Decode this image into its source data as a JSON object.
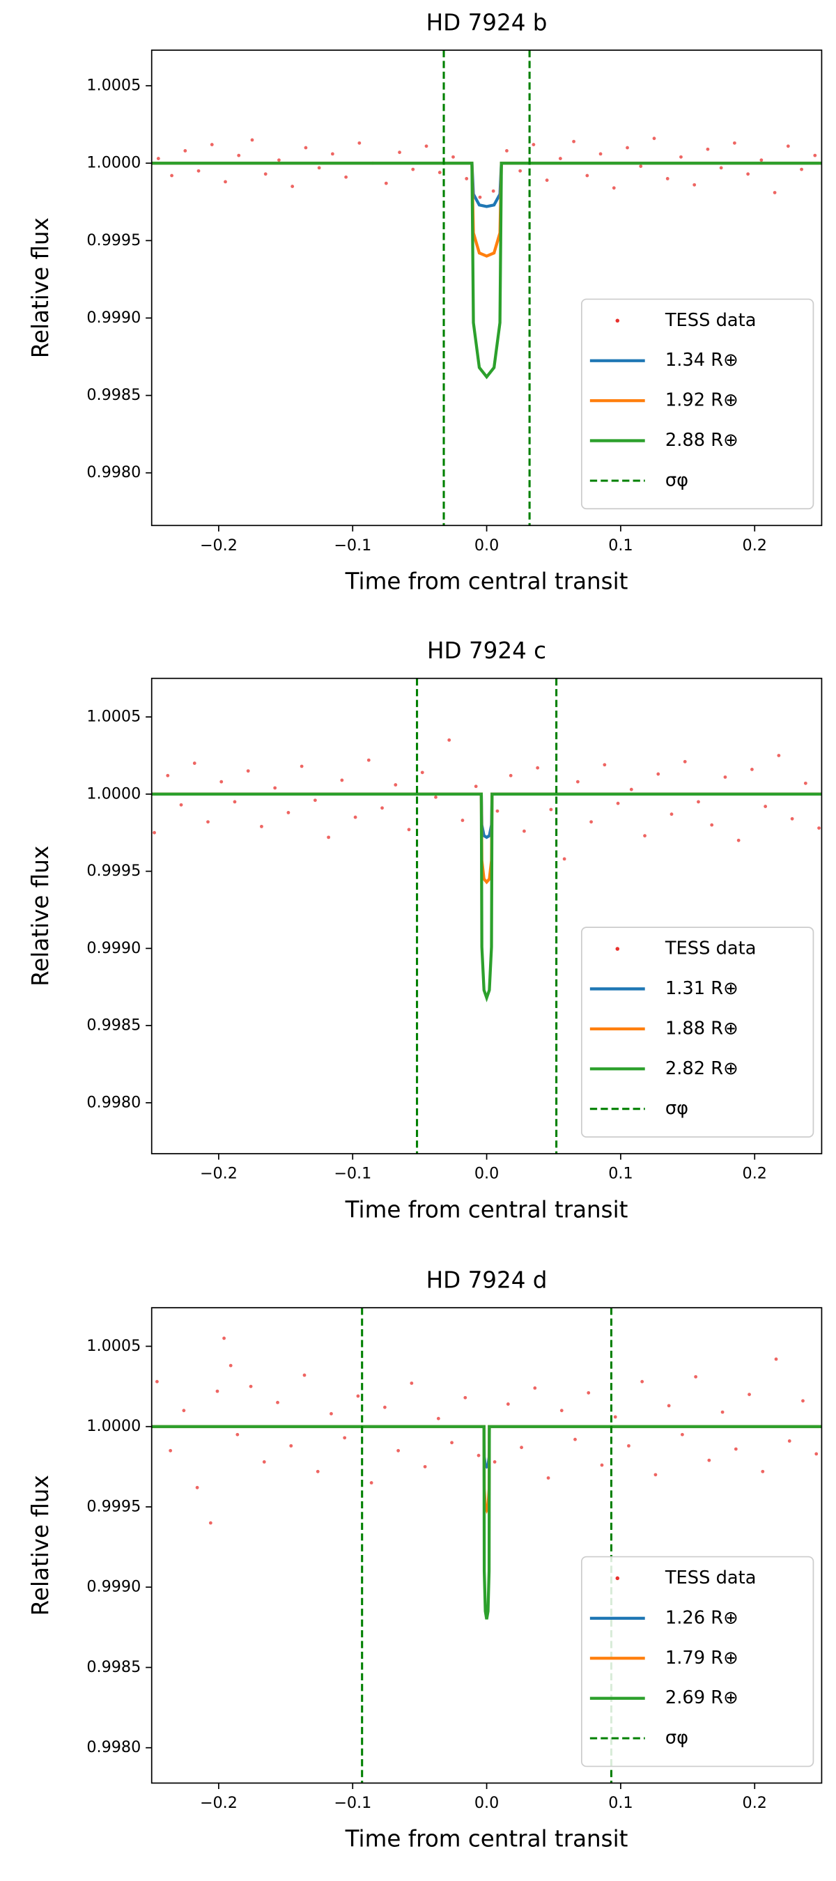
{
  "chart_data": [
    {
      "type": "scatter",
      "title": "HD 7924 b",
      "xlabel": "Time from central transit",
      "ylabel": "Relative flux",
      "xlim": [
        -0.25,
        0.25
      ],
      "ylim": [
        0.99766,
        1.00073
      ],
      "xticks": [
        {
          "value": -0.2,
          "label": "−0.2"
        },
        {
          "value": -0.1,
          "label": "−0.1"
        },
        {
          "value": 0,
          "label": "0.0"
        },
        0.1,
        0.2
      ],
      "yticks": [
        {
          "value": 0.998,
          "label": "0.9980"
        },
        0.9985,
        {
          "value": 0.999,
          "label": "0.9990"
        },
        0.9995,
        {
          "value": 1,
          "label": "1.0000"
        },
        1.0005
      ],
      "legend": "lower right",
      "series": [
        {
          "name": "TESS data",
          "type": "scatter",
          "color": "#e8312d",
          "x": [
            -0.245,
            -0.235,
            -0.225,
            -0.215,
            -0.205,
            -0.195,
            -0.185,
            -0.175,
            -0.165,
            -0.155,
            -0.145,
            -0.135,
            -0.125,
            -0.115,
            -0.105,
            -0.095,
            -0.085,
            -0.075,
            -0.065,
            -0.055,
            -0.045,
            -0.035,
            -0.025,
            -0.015,
            -0.005,
            0.005,
            0.015,
            0.025,
            0.035,
            0.045,
            0.055,
            0.065,
            0.075,
            0.085,
            0.095,
            0.105,
            0.115,
            0.125,
            0.135,
            0.145,
            0.155,
            0.165,
            0.175,
            0.185,
            0.195,
            0.205,
            0.215,
            0.225,
            0.235,
            0.245
          ],
          "values": [
            1.00003,
            0.99992,
            1.00008,
            0.99995,
            1.00012,
            0.99988,
            1.00005,
            1.00015,
            0.99993,
            1.00002,
            0.99985,
            1.0001,
            0.99997,
            1.00006,
            0.99991,
            1.00013,
            1.0,
            0.99987,
            1.00007,
            0.99996,
            1.00011,
            0.99994,
            1.00004,
            0.9999,
            0.99978,
            0.99982,
            1.00008,
            0.99995,
            1.00012,
            0.99989,
            1.00003,
            1.00014,
            0.99992,
            1.00006,
            0.99984,
            1.0001,
            0.99998,
            1.00016,
            0.9999,
            1.00004,
            0.99986,
            1.00009,
            0.99997,
            1.00013,
            0.99993,
            1.00002,
            0.99981,
            1.00011,
            0.99996,
            1.00005
          ]
        },
        {
          "name": "1.34 R⊕",
          "type": "line",
          "color": "#1f77b4",
          "x": [
            -0.25,
            -0.011,
            -0.0099,
            -0.0055,
            0,
            0.0055,
            0.0099,
            0.011,
            0.25
          ],
          "values": [
            1,
            1,
            0.9998,
            0.99973,
            0.99972,
            0.99973,
            0.9998,
            1,
            1
          ]
        },
        {
          "name": "1.92 R⊕",
          "type": "line",
          "color": "#ff7f0e",
          "x": [
            -0.25,
            -0.011,
            -0.0099,
            -0.0055,
            0,
            0.0055,
            0.0099,
            0.011,
            0.25
          ],
          "values": [
            1,
            1,
            0.99955,
            0.99942,
            0.9994,
            0.99942,
            0.99955,
            1,
            1
          ]
        },
        {
          "name": "2.88 R⊕",
          "type": "line",
          "color": "#2ca02c",
          "x": [
            -0.25,
            -0.011,
            -0.0099,
            -0.0055,
            0,
            0.0055,
            0.0099,
            0.011,
            0.25
          ],
          "values": [
            1,
            1,
            0.99897,
            0.99868,
            0.99862,
            0.99868,
            0.99897,
            1,
            1
          ]
        },
        {
          "name": "σφ",
          "type": "vline",
          "color": "#008000",
          "x": [
            -0.032,
            0.032
          ]
        }
      ]
    },
    {
      "type": "scatter",
      "title": "HD 7924 c",
      "xlabel": "Time from central transit",
      "ylabel": "Relative flux",
      "xlim": [
        -0.25,
        0.25
      ],
      "ylim": [
        0.99767,
        1.00075
      ],
      "xticks": [
        {
          "value": -0.2,
          "label": "−0.2"
        },
        {
          "value": -0.1,
          "label": "−0.1"
        },
        {
          "value": 0,
          "label": "0.0"
        },
        0.1,
        0.2
      ],
      "yticks": [
        {
          "value": 0.998,
          "label": "0.9980"
        },
        0.9985,
        {
          "value": 0.999,
          "label": "0.9990"
        },
        0.9995,
        {
          "value": 1,
          "label": "1.0000"
        },
        1.0005
      ],
      "legend": "lower right",
      "series": [
        {
          "name": "TESS data",
          "type": "scatter",
          "color": "#e8312d",
          "x": [
            -0.248,
            -0.238,
            -0.228,
            -0.218,
            -0.208,
            -0.198,
            -0.188,
            -0.178,
            -0.168,
            -0.158,
            -0.148,
            -0.138,
            -0.128,
            -0.118,
            -0.108,
            -0.098,
            -0.088,
            -0.078,
            -0.068,
            -0.058,
            -0.048,
            -0.038,
            -0.028,
            -0.018,
            -0.008,
            0.008,
            0.018,
            0.028,
            0.038,
            0.048,
            0.058,
            0.068,
            0.078,
            0.088,
            0.098,
            0.108,
            0.118,
            0.128,
            0.138,
            0.148,
            0.158,
            0.168,
            0.178,
            0.188,
            0.198,
            0.208,
            0.218,
            0.228,
            0.238,
            0.248
          ],
          "values": [
            0.99975,
            1.00012,
            0.99993,
            1.0002,
            0.99982,
            1.00008,
            0.99995,
            1.00015,
            0.99979,
            1.00004,
            0.99988,
            1.00018,
            0.99996,
            0.99972,
            1.00009,
            0.99985,
            1.00022,
            0.99991,
            1.00006,
            0.99977,
            1.00014,
            0.99998,
            1.00035,
            0.99983,
            1.00005,
            0.99989,
            1.00012,
            0.99976,
            1.00017,
            0.9999,
            0.99958,
            1.00008,
            0.99982,
            1.00019,
            0.99994,
            1.00003,
            0.99973,
            1.00013,
            0.99987,
            1.00021,
            0.99995,
            0.9998,
            1.00011,
            0.9997,
            1.00016,
            0.99992,
            1.00025,
            0.99984,
            1.00007,
            0.99978
          ]
        },
        {
          "name": "1.31 R⊕",
          "type": "line",
          "color": "#1f77b4",
          "x": [
            -0.25,
            -0.004,
            -0.0036,
            -0.002,
            0,
            0.002,
            0.0036,
            0.004,
            0.25
          ],
          "values": [
            1,
            1,
            0.9998,
            0.99973,
            0.99972,
            0.99973,
            0.9998,
            1,
            1
          ]
        },
        {
          "name": "1.88 R⊕",
          "type": "line",
          "color": "#ff7f0e",
          "x": [
            -0.25,
            -0.004,
            -0.0036,
            -0.002,
            0,
            0.002,
            0.0036,
            0.004,
            0.25
          ],
          "values": [
            1,
            1,
            0.99957,
            0.99945,
            0.99943,
            0.99945,
            0.99957,
            1,
            1
          ]
        },
        {
          "name": "2.82 R⊕",
          "type": "line",
          "color": "#2ca02c",
          "x": [
            -0.25,
            -0.004,
            -0.0036,
            -0.002,
            0,
            0.002,
            0.0036,
            0.004,
            0.25
          ],
          "values": [
            1,
            1,
            0.99901,
            0.99873,
            0.99868,
            0.99873,
            0.99901,
            1,
            1
          ]
        },
        {
          "name": "σφ",
          "type": "vline",
          "color": "#008000",
          "x": [
            -0.052,
            0.052
          ]
        }
      ]
    },
    {
      "type": "scatter",
      "title": "HD 7924 d",
      "xlabel": "Time from central transit",
      "ylabel": "Relative flux",
      "xlim": [
        -0.25,
        0.25
      ],
      "ylim": [
        0.99778,
        1.00074
      ],
      "xticks": [
        {
          "value": -0.2,
          "label": "−0.2"
        },
        {
          "value": -0.1,
          "label": "−0.1"
        },
        {
          "value": 0,
          "label": "0.0"
        },
        0.1,
        0.2
      ],
      "yticks": [
        {
          "value": 0.998,
          "label": "0.9980"
        },
        0.9985,
        {
          "value": 0.999,
          "label": "0.9990"
        },
        0.9995,
        {
          "value": 1,
          "label": "1.0000"
        },
        1.0005
      ],
      "legend": "lower right",
      "series": [
        {
          "name": "TESS data",
          "type": "scatter",
          "color": "#e8312d",
          "x": [
            -0.246,
            -0.236,
            -0.226,
            -0.216,
            -0.206,
            -0.201,
            -0.196,
            -0.191,
            -0.186,
            -0.176,
            -0.166,
            -0.156,
            -0.146,
            -0.136,
            -0.126,
            -0.116,
            -0.106,
            -0.096,
            -0.086,
            -0.076,
            -0.066,
            -0.056,
            -0.046,
            -0.036,
            -0.026,
            -0.016,
            -0.006,
            0.006,
            0.016,
            0.026,
            0.036,
            0.046,
            0.056,
            0.066,
            0.076,
            0.086,
            0.096,
            0.106,
            0.116,
            0.126,
            0.136,
            0.146,
            0.156,
            0.166,
            0.176,
            0.186,
            0.196,
            0.206,
            0.216,
            0.226,
            0.236,
            0.246
          ],
          "values": [
            1.00028,
            0.99985,
            1.0001,
            0.99962,
            0.9994,
            1.00022,
            1.00055,
            1.00038,
            0.99995,
            1.00025,
            0.99978,
            1.00015,
            0.99988,
            1.00032,
            0.99972,
            1.00008,
            0.99993,
            1.00019,
            0.99965,
            1.00012,
            0.99985,
            1.00027,
            0.99975,
            1.00005,
            0.9999,
            1.00018,
            0.99982,
            0.99978,
            1.00014,
            0.99987,
            1.00024,
            0.99968,
            1.0001,
            0.99992,
            1.00021,
            0.99976,
            1.00006,
            0.99988,
            1.00028,
            0.9997,
            1.00013,
            0.99995,
            1.00031,
            0.99979,
            1.00009,
            0.99986,
            1.0002,
            0.99972,
            1.00042,
            0.99991,
            1.00016,
            0.99983
          ]
        },
        {
          "name": "1.26 R⊕",
          "type": "line",
          "color": "#1f77b4",
          "x": [
            -0.25,
            -0.002,
            -0.0018,
            -0.001,
            0,
            0.001,
            0.0018,
            0.002,
            0.25
          ],
          "values": [
            1,
            1,
            0.99981,
            0.99976,
            0.99975,
            0.99976,
            0.99981,
            1,
            1
          ]
        },
        {
          "name": "1.79 R⊕",
          "type": "line",
          "color": "#ff7f0e",
          "x": [
            -0.25,
            -0.002,
            -0.0018,
            -0.001,
            0,
            0.001,
            0.0018,
            0.002,
            0.25
          ],
          "values": [
            1,
            1,
            0.99961,
            0.9995,
            0.99948,
            0.9995,
            0.99961,
            1,
            1
          ]
        },
        {
          "name": "2.69 R⊕",
          "type": "line",
          "color": "#2ca02c",
          "x": [
            -0.25,
            -0.002,
            -0.0018,
            -0.001,
            0,
            0.001,
            0.0018,
            0.002,
            0.25
          ],
          "values": [
            1,
            1,
            0.9991,
            0.99885,
            0.9988,
            0.99885,
            0.9991,
            1,
            1
          ]
        },
        {
          "name": "σφ",
          "type": "vline",
          "color": "#008000",
          "x": [
            -0.093,
            0.093
          ]
        }
      ]
    }
  ]
}
